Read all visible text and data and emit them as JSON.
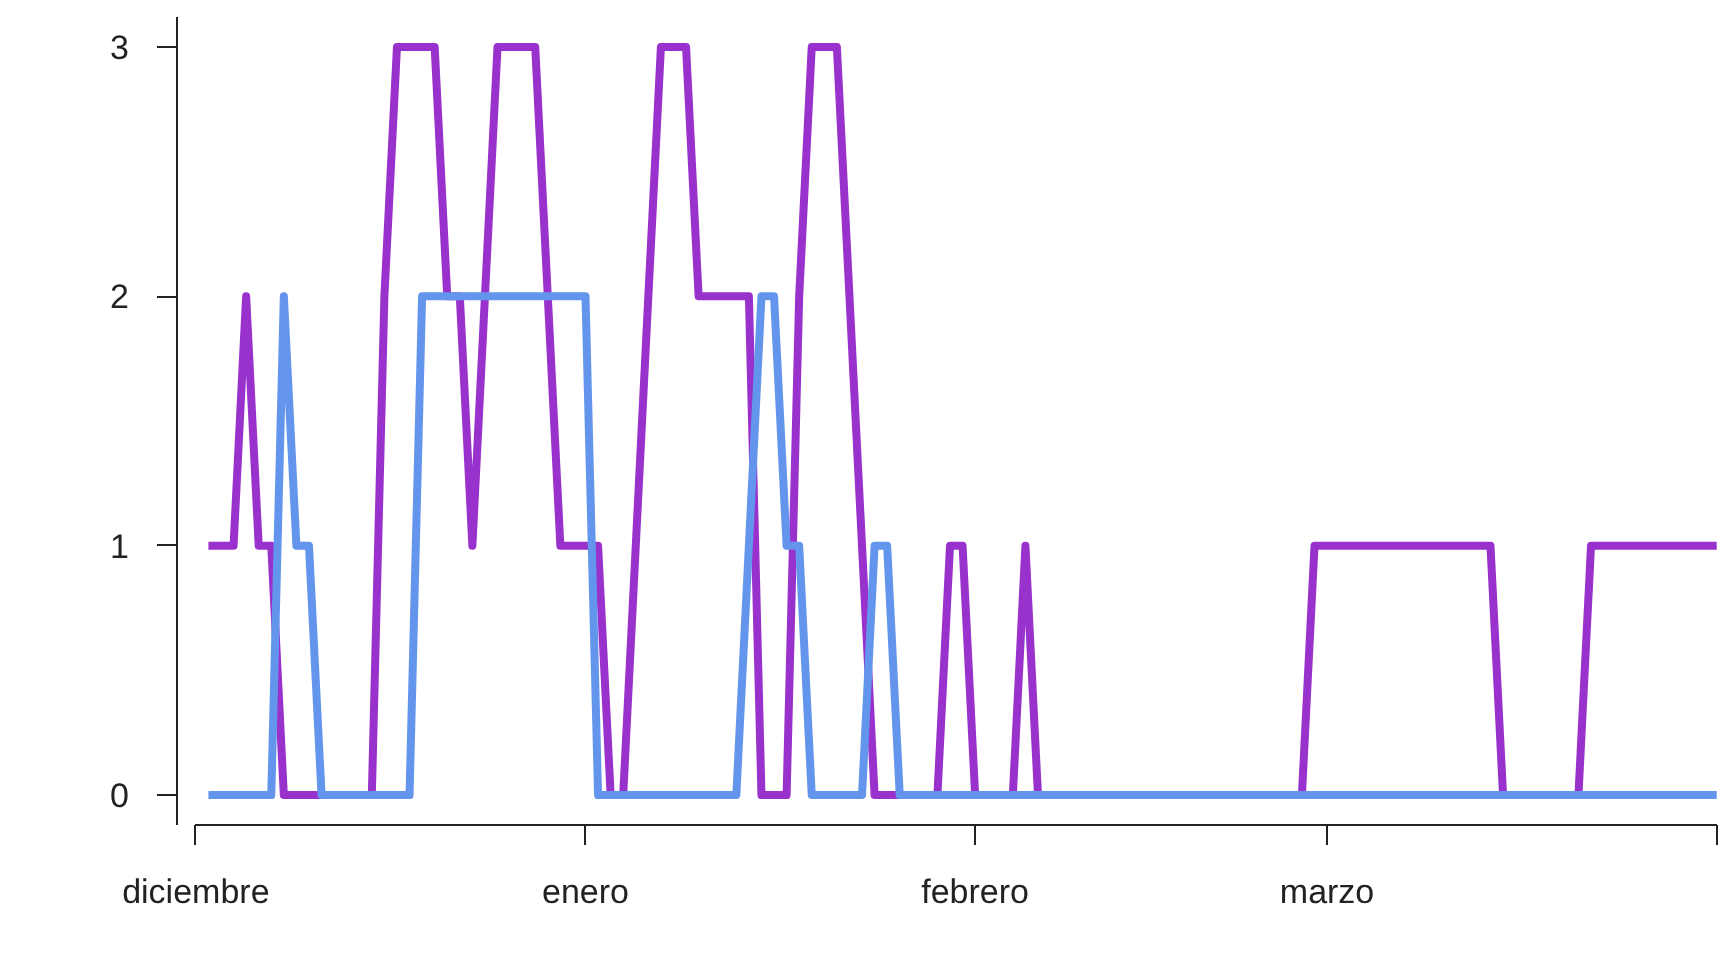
{
  "chart_data": {
    "type": "line",
    "categories": [
      "diciembre",
      null,
      null,
      null,
      null,
      null,
      null,
      null,
      null,
      null,
      null,
      null,
      null,
      null,
      null,
      null,
      null,
      null,
      null,
      null,
      null,
      null,
      null,
      null,
      null,
      null,
      null,
      null,
      null,
      null,
      null,
      "enero",
      null,
      null,
      null,
      null,
      null,
      null,
      null,
      null,
      null,
      null,
      null,
      null,
      null,
      null,
      null,
      null,
      null,
      null,
      null,
      null,
      null,
      null,
      null,
      null,
      null,
      null,
      null,
      null,
      null,
      null,
      "febrero",
      null,
      null,
      null,
      null,
      null,
      null,
      null,
      null,
      null,
      null,
      null,
      null,
      null,
      null,
      null,
      null,
      null,
      null,
      null,
      null,
      null,
      null,
      null,
      null,
      null,
      null,
      null,
      "marzo",
      null,
      null,
      null,
      null,
      null,
      null,
      null,
      null,
      null,
      null,
      null,
      null,
      null,
      null,
      null,
      null,
      null,
      null,
      null,
      null,
      null,
      null,
      null,
      null,
      null,
      null,
      null,
      null,
      null,
      null,
      null
    ],
    "ylim": [
      -0.12,
      3.12
    ],
    "yticks": [
      0,
      1,
      2,
      3
    ],
    "series": [
      {
        "color": "#9932cc",
        "values": [
          null,
          1,
          1,
          1,
          2,
          1,
          1,
          0,
          0,
          0,
          0,
          0,
          0,
          0,
          0,
          2,
          3,
          3,
          3,
          3,
          2,
          2,
          1,
          2,
          3,
          3,
          3,
          3,
          2,
          1,
          1,
          1,
          1,
          0,
          0,
          1,
          2,
          3,
          3,
          3,
          2,
          2,
          2,
          2,
          2,
          0,
          0,
          0,
          2,
          3,
          3,
          3,
          2,
          1,
          0,
          0,
          0,
          0,
          0,
          0,
          1,
          1,
          0,
          0,
          0,
          0,
          1,
          0,
          0,
          0,
          0,
          0,
          0,
          0,
          0,
          0,
          0,
          0,
          0,
          0,
          0,
          0,
          0,
          0,
          0,
          0,
          0,
          0,
          0,
          1,
          1,
          1,
          1,
          1,
          1,
          1,
          1,
          1,
          1,
          1,
          1,
          1,
          1,
          1,
          0,
          0,
          0,
          0,
          0,
          0,
          0,
          1,
          1,
          1,
          1,
          1,
          1,
          1,
          1,
          1,
          1,
          1
        ]
      },
      {
        "color": "#6495ed",
        "values": [
          null,
          0,
          0,
          0,
          0,
          0,
          0,
          2,
          1,
          1,
          0,
          0,
          0,
          0,
          0,
          0,
          0,
          0,
          2,
          2,
          2,
          2,
          2,
          2,
          2,
          2,
          2,
          2,
          2,
          2,
          2,
          2,
          0,
          0,
          0,
          0,
          0,
          0,
          0,
          0,
          0,
          0,
          0,
          0,
          1,
          2,
          2,
          1,
          1,
          0,
          0,
          0,
          0,
          0,
          1,
          1,
          0,
          0,
          0,
          0,
          0,
          0,
          0,
          0,
          0,
          0,
          0,
          0,
          0,
          0,
          0,
          0,
          0,
          0,
          0,
          0,
          0,
          0,
          0,
          0,
          0,
          0,
          0,
          0,
          0,
          0,
          0,
          0,
          0,
          0,
          0,
          0,
          0,
          0,
          0,
          0,
          0,
          0,
          0,
          0,
          0,
          0,
          0,
          0,
          0,
          0,
          0,
          0,
          0,
          0,
          0,
          0,
          0,
          0,
          0,
          0,
          0,
          0,
          0,
          0,
          0,
          0
        ]
      }
    ]
  }
}
